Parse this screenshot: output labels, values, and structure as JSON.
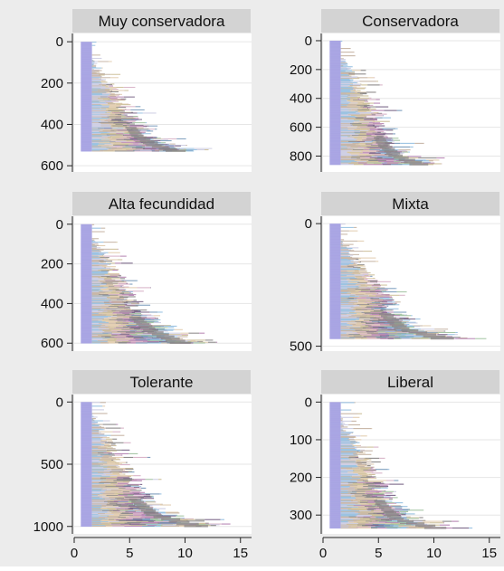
{
  "chart_data": {
    "type": "sequence index plot",
    "x_ticks": [
      0,
      5,
      10,
      15
    ],
    "xlim": [
      0,
      16
    ],
    "grid": true,
    "state_colors": [
      "#a9a5e3",
      "#9bc3e2",
      "#cfcfe4",
      "#c8b7a8",
      "#e3cfb3",
      "#cfc29d",
      "#8f8c8c",
      "#d9b5c9",
      "#b98ab6",
      "#7e6b8c",
      "#7e9ebd",
      "#a6c6a6"
    ],
    "panels": [
      {
        "title": "Muy conservadora",
        "y_ticks": [
          0,
          200,
          400,
          600
        ],
        "ylim": [
          -40,
          630
        ],
        "n": 530,
        "steps": [
          [
            0,
            0.6
          ],
          [
            0.25,
            2.1
          ],
          [
            0.5,
            3.9
          ],
          [
            0.7,
            5.2
          ],
          [
            0.85,
            6.6
          ],
          [
            0.94,
            8.4
          ],
          [
            1.0,
            11.1
          ]
        ]
      },
      {
        "title": "Conservadora",
        "y_ticks": [
          0,
          200,
          400,
          600,
          800
        ],
        "ylim": [
          -50,
          910
        ],
        "n": 860,
        "steps": [
          [
            0,
            0.6
          ],
          [
            0.22,
            2.3
          ],
          [
            0.45,
            3.7
          ],
          [
            0.65,
            5.0
          ],
          [
            0.82,
            6.2
          ],
          [
            0.92,
            7.6
          ],
          [
            1.0,
            10.4
          ]
        ]
      },
      {
        "title": "Alta fecundidad",
        "y_ticks": [
          0,
          200,
          400,
          600
        ],
        "ylim": [
          -40,
          640
        ],
        "n": 600,
        "steps": [
          [
            0,
            0.6
          ],
          [
            0.2,
            2.2
          ],
          [
            0.4,
            3.6
          ],
          [
            0.6,
            4.7
          ],
          [
            0.75,
            6.0
          ],
          [
            0.88,
            7.9
          ],
          [
            1.0,
            11.4
          ]
        ]
      },
      {
        "title": "Mixta",
        "y_ticks": [
          0,
          500
        ],
        "ylim": [
          -30,
          520
        ],
        "n": 470,
        "steps": [
          [
            0,
            0.6
          ],
          [
            0.2,
            2.2
          ],
          [
            0.4,
            3.6
          ],
          [
            0.6,
            5.2
          ],
          [
            0.78,
            6.5
          ],
          [
            0.9,
            8.2
          ],
          [
            1.0,
            13.0
          ]
        ]
      },
      {
        "title": "Tolerante",
        "y_ticks": [
          0,
          500,
          1000
        ],
        "ylim": [
          -60,
          1060
        ],
        "n": 1000,
        "steps": [
          [
            0,
            0.6
          ],
          [
            0.2,
            2.3
          ],
          [
            0.4,
            3.6
          ],
          [
            0.6,
            5.0
          ],
          [
            0.78,
            6.4
          ],
          [
            0.9,
            8.3
          ],
          [
            1.0,
            13.3
          ]
        ]
      },
      {
        "title": "Liberal",
        "y_ticks": [
          0,
          100,
          200,
          300
        ],
        "ylim": [
          -20,
          350
        ],
        "n": 335,
        "steps": [
          [
            0,
            0.6
          ],
          [
            0.22,
            2.2
          ],
          [
            0.42,
            3.5
          ],
          [
            0.62,
            4.7
          ],
          [
            0.8,
            6.1
          ],
          [
            0.92,
            7.7
          ],
          [
            1.0,
            12.4
          ]
        ]
      }
    ]
  }
}
